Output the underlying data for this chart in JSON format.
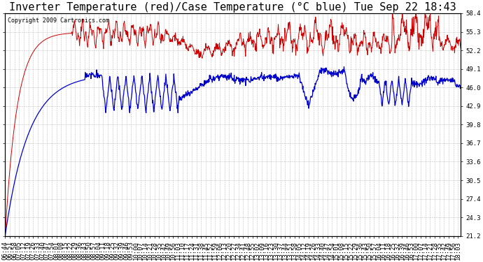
{
  "title": "Inverter Temperature (red)/Case Temperature (°C blue) Tue Sep 22 18:43",
  "copyright": "Copyright 2009 Cartronics.com",
  "ylabel_right_ticks": [
    21.2,
    24.3,
    27.4,
    30.5,
    33.6,
    36.7,
    39.8,
    42.9,
    46.0,
    49.1,
    52.2,
    55.3,
    58.4
  ],
  "ylim": [
    21.2,
    58.4
  ],
  "red_color": "#cc0000",
  "blue_color": "#0000cc",
  "bg_color": "#ffffff",
  "grid_color": "#b0b0b0",
  "title_fontsize": 11,
  "copyright_fontsize": 6,
  "tick_fontsize": 6.5
}
